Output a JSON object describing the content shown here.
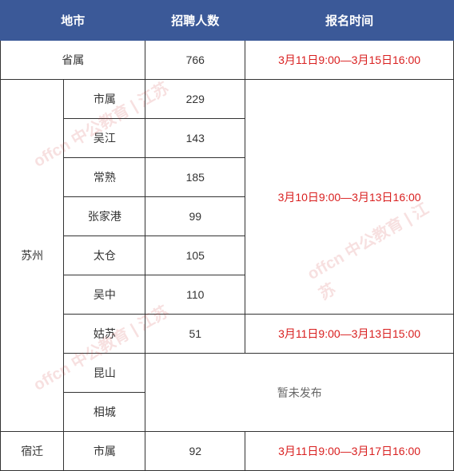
{
  "header": {
    "col1": "地市",
    "col2": "招聘人数",
    "col3": "报名时间"
  },
  "colors": {
    "header_bg": "#3b5998",
    "header_text": "#ffffff",
    "border": "#333333",
    "text": "#333333",
    "red_text": "#d92020",
    "gray_text": "#666666",
    "watermark": "rgba(200,50,50,0.15)"
  },
  "col_widths": [
    "14%",
    "18%",
    "22%",
    "46%"
  ],
  "rows": {
    "provincial": {
      "name": "省属",
      "count": "766",
      "time": "3月11日9:00—3月15日16:00"
    },
    "suzhou": {
      "name": "苏州",
      "group1": [
        "市属",
        "吴江",
        "常熟",
        "张家港",
        "太仓",
        "吴中"
      ],
      "group1_counts": [
        "229",
        "143",
        "185",
        "99",
        "105",
        "110"
      ],
      "group1_time": "3月10日9:00—3月13日16:00",
      "gusu": {
        "name": "姑苏",
        "count": "51",
        "time": "3月11日9:00—3月13日15:00"
      },
      "group3": [
        "昆山",
        "相城"
      ],
      "group3_text": "暂未发布"
    },
    "suqian": {
      "name": "宿迁",
      "dist": "市属",
      "count": "92",
      "time": "3月11日9:00—3月17日16:00"
    }
  },
  "watermark_text": "offcn 中公教育 | 江苏"
}
